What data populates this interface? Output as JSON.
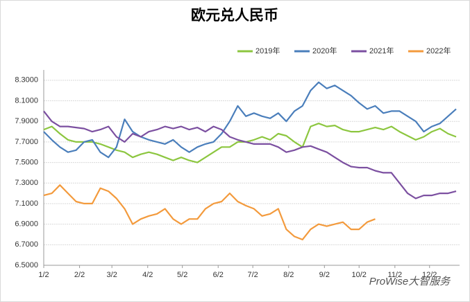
{
  "chart_data": {
    "type": "line",
    "title": "欧元兑人民币",
    "watermark": "ProWise大智服务",
    "x": [
      0,
      7,
      14,
      21,
      28,
      35,
      42,
      49,
      56,
      63,
      70,
      77,
      84,
      91,
      98,
      105,
      112,
      119,
      126,
      133,
      140,
      147,
      154,
      161,
      168,
      175,
      182,
      189,
      196,
      203,
      210,
      217,
      224,
      231,
      238,
      245,
      252,
      259,
      266,
      273,
      280,
      287,
      294,
      301,
      308,
      315,
      322,
      329,
      336,
      343,
      350,
      357
    ],
    "xlim": [
      0,
      360
    ],
    "xticks": [
      {
        "value": 0,
        "label": "1/2"
      },
      {
        "value": 31,
        "label": "2/2"
      },
      {
        "value": 59,
        "label": "3/2"
      },
      {
        "value": 90,
        "label": "4/2"
      },
      {
        "value": 120,
        "label": "5/2"
      },
      {
        "value": 151,
        "label": "6/2"
      },
      {
        "value": 181,
        "label": "7/2"
      },
      {
        "value": 212,
        "label": "8/2"
      },
      {
        "value": 243,
        "label": "9/2"
      },
      {
        "value": 273,
        "label": "10/2"
      },
      {
        "value": 304,
        "label": "11/2"
      },
      {
        "value": 334,
        "label": "12/2"
      }
    ],
    "ylim": [
      6.5,
      8.4
    ],
    "yticks": [
      {
        "value": 6.5,
        "label": "6.5000"
      },
      {
        "value": 6.7,
        "label": "6.7000"
      },
      {
        "value": 6.9,
        "label": "6.9000"
      },
      {
        "value": 7.1,
        "label": "7.1000"
      },
      {
        "value": 7.3,
        "label": "7.3000"
      },
      {
        "value": 7.5,
        "label": "7.5000"
      },
      {
        "value": 7.7,
        "label": "7.7000"
      },
      {
        "value": 7.9,
        "label": "7.9000"
      },
      {
        "value": 8.1,
        "label": "8.1000"
      },
      {
        "value": 8.3,
        "label": "8.3000"
      }
    ],
    "grid": true,
    "legend": "top-right",
    "series": [
      {
        "name": "2019年",
        "color": "#8cc63f",
        "values": [
          7.82,
          7.85,
          7.78,
          7.72,
          7.7,
          7.7,
          7.7,
          7.68,
          7.65,
          7.62,
          7.6,
          7.55,
          7.58,
          7.6,
          7.58,
          7.55,
          7.52,
          7.55,
          7.52,
          7.5,
          7.55,
          7.6,
          7.65,
          7.65,
          7.7,
          7.7,
          7.72,
          7.75,
          7.72,
          7.78,
          7.76,
          7.7,
          7.65,
          7.85,
          7.88,
          7.85,
          7.86,
          7.82,
          7.8,
          7.8,
          7.82,
          7.84,
          7.82,
          7.85,
          7.8,
          7.76,
          7.72,
          7.75,
          7.8,
          7.83,
          7.78,
          7.75
        ]
      },
      {
        "name": "2020年",
        "color": "#4a7ebb",
        "values": [
          7.8,
          7.72,
          7.65,
          7.6,
          7.62,
          7.7,
          7.72,
          7.6,
          7.55,
          7.65,
          7.92,
          7.8,
          7.75,
          7.72,
          7.7,
          7.68,
          7.72,
          7.65,
          7.6,
          7.65,
          7.68,
          7.7,
          7.78,
          7.9,
          8.05,
          7.95,
          7.98,
          7.95,
          7.93,
          7.98,
          7.9,
          8.0,
          8.05,
          8.2,
          8.28,
          8.22,
          8.25,
          8.2,
          8.15,
          8.08,
          8.02,
          8.05,
          7.98,
          8.0,
          8.0,
          7.95,
          7.9,
          7.8,
          7.85,
          7.88,
          7.95,
          8.02
        ]
      },
      {
        "name": "2021年",
        "color": "#7b4fa0",
        "values": [
          8.0,
          7.9,
          7.85,
          7.85,
          7.84,
          7.83,
          7.8,
          7.82,
          7.85,
          7.75,
          7.7,
          7.78,
          7.75,
          7.8,
          7.82,
          7.85,
          7.83,
          7.85,
          7.82,
          7.84,
          7.8,
          7.85,
          7.82,
          7.75,
          7.72,
          7.7,
          7.68,
          7.68,
          7.68,
          7.65,
          7.6,
          7.62,
          7.65,
          7.66,
          7.63,
          7.6,
          7.55,
          7.5,
          7.46,
          7.45,
          7.45,
          7.42,
          7.4,
          7.4,
          7.3,
          7.2,
          7.15,
          7.18,
          7.18,
          7.2,
          7.2,
          7.22
        ]
      },
      {
        "name": "2022年",
        "color": "#f39a3c",
        "values": [
          7.18,
          7.2,
          7.28,
          7.2,
          7.12,
          7.1,
          7.1,
          7.25,
          7.22,
          7.15,
          7.05,
          6.9,
          6.95,
          6.98,
          7.0,
          7.05,
          6.95,
          6.9,
          6.95,
          6.95,
          7.05,
          7.1,
          7.12,
          7.2,
          7.12,
          7.08,
          7.05,
          6.98,
          7.0,
          7.05,
          6.85,
          6.78,
          6.75,
          6.85,
          6.9,
          6.88,
          6.9,
          6.92,
          6.85,
          6.85,
          6.92,
          6.95,
          null,
          null,
          null,
          null,
          null,
          null,
          null,
          null,
          null,
          null
        ]
      }
    ]
  }
}
